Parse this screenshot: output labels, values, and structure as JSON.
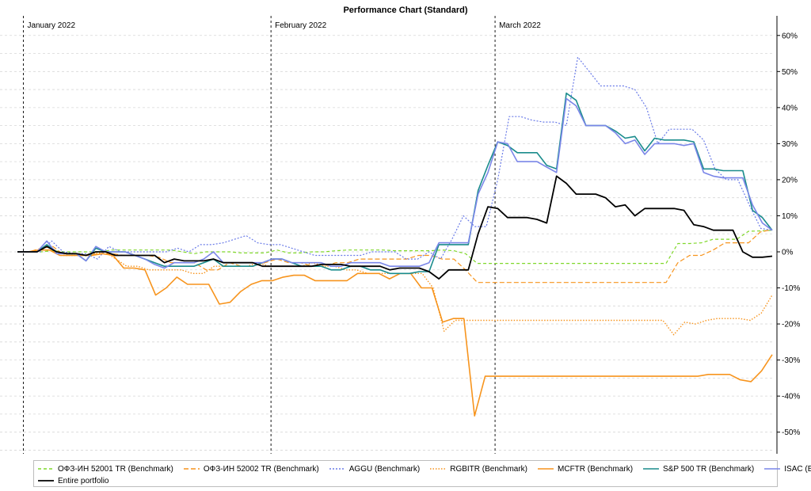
{
  "chart_data": {
    "type": "line",
    "title": "Performance Chart (Standard)",
    "xlabel": "",
    "ylabel": "",
    "ylim": [
      -56,
      65
    ],
    "yticks": [
      -50,
      -40,
      -30,
      -20,
      -10,
      0,
      10,
      20,
      30,
      40,
      50,
      60
    ],
    "ytick_labels": [
      "-50%",
      "-40%",
      "-30%",
      "-20%",
      "-10%",
      "0%",
      "10%",
      "20%",
      "30%",
      "40%",
      "50%",
      "60%"
    ],
    "y_axis_side": "right",
    "grid": true,
    "legend_position": "bottom",
    "x_range": [
      0,
      64
    ],
    "month_markers": [
      {
        "label": "January 2022",
        "x": 0.5
      },
      {
        "label": "February 2022",
        "x": 21.5
      },
      {
        "label": "March 2022",
        "x": 40.5
      }
    ],
    "series": [
      {
        "name": "ОФЗ-ИН 52001 TR (Benchmark)",
        "color": "#7fd82a",
        "dash": "4,3",
        "width": 1.2,
        "values": [
          0,
          0,
          0,
          0.3,
          0,
          0,
          0,
          0,
          0.5,
          0.5,
          0.5,
          0.5,
          0.5,
          0.5,
          0,
          -0.5,
          0,
          0,
          0,
          -0.3,
          -0.3,
          -0.3,
          0.5,
          -0.3,
          -0.3,
          0,
          0,
          0.3,
          0.5,
          0.5,
          0.5,
          0.5,
          0.3,
          0.3,
          0.3,
          0.3,
          0.5,
          0.3,
          -0.5,
          -3.2,
          -3.2,
          -3.2,
          -3.2,
          -3.2,
          -3.2,
          -3.2,
          -3.2,
          -3.2,
          -3.2,
          -3.2,
          -3.2,
          -3.2,
          -3.2,
          -3.2,
          -3.2,
          -3.2,
          2.3,
          2.3,
          2.5,
          3.5,
          3.5,
          3.5,
          5.7,
          5.8,
          6.0
        ]
      },
      {
        "name": "ОФЗ-ИН 52002 TR (Benchmark)",
        "color": "#f7941d",
        "dash": "6,3",
        "width": 1.2,
        "values": [
          0,
          0,
          1,
          1.5,
          -1,
          -1,
          -1,
          -0.5,
          -0.5,
          -1,
          -1,
          -1,
          -1.5,
          -3,
          -3,
          -3,
          -5,
          -5,
          -3,
          -4,
          -4,
          -3,
          -2,
          -3,
          -3,
          -4,
          -4,
          -3,
          -3,
          -2,
          -2,
          -2,
          -2,
          -2,
          -1,
          -1,
          -2,
          -2,
          -5,
          -8.5,
          -8.5,
          -8.5,
          -8.5,
          -8.5,
          -8.5,
          -8.5,
          -8.5,
          -8.5,
          -8.5,
          -8.5,
          -8.5,
          -8.5,
          -8.5,
          -8.5,
          -8.5,
          -8.5,
          -3,
          -1,
          -1,
          0.5,
          2.5,
          2.5,
          2.5,
          5.5,
          6.2
        ]
      },
      {
        "name": "AGGU (Benchmark)",
        "color": "#6a7be8",
        "dash": "2,2",
        "width": 1.2,
        "values": [
          0,
          0,
          0,
          3,
          0,
          -0.5,
          -0.5,
          -2,
          1.5,
          0,
          0,
          0,
          0,
          0,
          1,
          0,
          2,
          2,
          2.5,
          3.5,
          4.5,
          2.5,
          2,
          2,
          1,
          0,
          -1,
          -1,
          -1,
          -1,
          -1,
          0,
          0,
          0,
          -2,
          -2,
          0,
          -2,
          3.5,
          10,
          7,
          7,
          20,
          37.5,
          37.5,
          36.5,
          36,
          36,
          35,
          54,
          50,
          46,
          46,
          46,
          45,
          40,
          30,
          34,
          34,
          34,
          31,
          23,
          20,
          20,
          13,
          6.5,
          6
        ]
      },
      {
        "name": "RGBITR (Benchmark)",
        "color": "#f7941d",
        "dash": "1.5,2",
        "width": 1.4,
        "values": [
          0,
          0,
          0.5,
          0.5,
          -1,
          -1,
          -1,
          -0.5,
          0,
          -2,
          -4,
          -4,
          -5,
          -5,
          -5,
          -5,
          -6,
          -6,
          -4,
          -4,
          -4,
          -4,
          -3,
          -4,
          -4,
          -4,
          -4,
          -3,
          -4,
          -4,
          -5,
          -5,
          -6,
          -6,
          -6,
          -6,
          -6,
          -6,
          -10,
          -22,
          -19,
          -19,
          -19,
          -19,
          -19,
          -19,
          -19,
          -19,
          -19,
          -19,
          -19,
          -19,
          -19,
          -19,
          -19,
          -19,
          -19,
          -19,
          -19,
          -19,
          -23,
          -19.5,
          -20,
          -19,
          -18.5,
          -18.5,
          -18.5,
          -19,
          -17,
          -12
        ]
      },
      {
        "name": "MCFTR (Benchmark)",
        "color": "#f7941d",
        "dash": "",
        "width": 1.6,
        "values": [
          0,
          0,
          0.5,
          0.5,
          -1,
          -1,
          -1,
          -1,
          -0.5,
          -1,
          -4.5,
          -4.5,
          -5,
          -12,
          -10,
          -7,
          -9,
          -9,
          -9,
          -14.5,
          -14,
          -11,
          -9,
          -8,
          -8,
          -7,
          -6.5,
          -6.5,
          -8,
          -8,
          -8,
          -8,
          -6,
          -6,
          -6,
          -7.5,
          -6,
          -6,
          -10,
          -10,
          -19.5,
          -18.5,
          -18.5,
          -45.5,
          -34.5,
          -34.5,
          -34.5,
          -34.5,
          -34.5,
          -34.5,
          -34.5,
          -34.5,
          -34.5,
          -34.5,
          -34.5,
          -34.5,
          -34.5,
          -34.5,
          -34.5,
          -34.5,
          -34.5,
          -34.5,
          -34.5,
          -34.5,
          -34.5,
          -34,
          -34,
          -34,
          -35.5,
          -36,
          -33,
          -28.5
        ]
      },
      {
        "name": "S&P 500 TR (Benchmark)",
        "color": "#1a8c8c",
        "dash": "",
        "width": 1.6,
        "values": [
          0,
          0,
          0,
          2,
          0,
          -0.5,
          -0.5,
          -2.5,
          1,
          0,
          0,
          0,
          -1,
          -2,
          -3,
          -4,
          -4,
          -4,
          -4,
          -3,
          -2,
          -4,
          -4,
          -4,
          -4,
          -3,
          -2,
          -2,
          -3,
          -4,
          -4,
          -4,
          -5,
          -5,
          -4,
          -4,
          -5,
          -5,
          -6,
          -6,
          -6,
          -5.5,
          -5.5,
          2,
          2,
          2,
          2,
          17,
          24,
          30.5,
          29.5,
          27.5,
          27.5,
          27.5,
          24,
          23,
          44,
          42,
          35,
          35,
          35,
          33.5,
          31.5,
          32,
          28,
          31.5,
          31,
          31,
          31,
          30.5,
          23,
          23,
          22.5,
          22.5,
          22.5,
          11.5,
          9.5,
          6
        ]
      },
      {
        "name": "ISAC (Benchmark)",
        "color": "#7a86e8",
        "dash": "",
        "width": 1.6,
        "values": [
          0,
          0,
          0,
          3,
          -0.5,
          -0.5,
          -0.5,
          -2.5,
          1.5,
          0,
          0,
          0,
          -1,
          -2,
          -3.5,
          -4.5,
          -3,
          -3,
          -3,
          -2,
          0,
          -3,
          -3,
          -3,
          -3,
          -3,
          -2,
          -2,
          -3,
          -3,
          -3,
          -3,
          -4,
          -4,
          -3,
          -3,
          -3,
          -3,
          -4,
          -4,
          -4,
          -4,
          -3,
          2.5,
          2.5,
          2.5,
          2.5,
          16,
          22,
          30.5,
          30,
          25,
          25,
          25,
          23.5,
          22,
          42.5,
          40.5,
          35,
          35,
          35,
          33,
          30,
          31,
          27,
          30,
          30,
          30,
          29.5,
          30,
          22,
          21,
          20.5,
          20.5,
          20.5,
          13,
          8,
          6
        ]
      },
      {
        "name": "Entire portfolio",
        "color": "#000000",
        "dash": "",
        "width": 1.8,
        "values": [
          0,
          0,
          0,
          1.5,
          0,
          -0.5,
          -0.5,
          -1,
          0,
          0,
          -1,
          -1,
          -1,
          -1,
          -1,
          -3,
          -2,
          -2.5,
          -2.5,
          -2.5,
          -2,
          -3,
          -3,
          -3,
          -3,
          -4,
          -4,
          -4,
          -4,
          -4,
          -4,
          -3.5,
          -3.5,
          -3.5,
          -4,
          -4,
          -4,
          -4,
          -5,
          -4.5,
          -4.5,
          -4.5,
          -5.5,
          -7.5,
          -5,
          -5,
          -5,
          5,
          12.5,
          12,
          9.5,
          9.5,
          9.5,
          9,
          8,
          21,
          19,
          16,
          16,
          16,
          15,
          12.5,
          13,
          10,
          12,
          12,
          12,
          12,
          11.5,
          7.5,
          7,
          6,
          6,
          6,
          0,
          -1.5,
          -1.5,
          -1.2
        ]
      }
    ]
  }
}
